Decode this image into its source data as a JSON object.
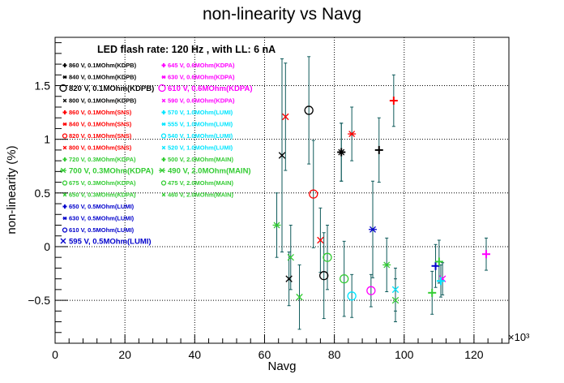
{
  "chart_data": {
    "type": "scatter",
    "title": "non-linearity vs Navg",
    "subtitle": "LED flash rate: 120 Hz , with LL: 6 nA",
    "xlabel": "Navg",
    "ylabel": "non-linearity (%)",
    "x_multiplier_label": "×10³",
    "x_multiplier": 1000,
    "xlim": [
      0,
      130
    ],
    "ylim": [
      -0.9,
      1.95
    ],
    "x_ticks": [
      {
        "value": 0,
        "label": "0"
      },
      {
        "value": 20,
        "label": "20"
      },
      {
        "value": 40,
        "label": "40"
      },
      {
        "value": 60,
        "label": "60"
      },
      {
        "value": 80,
        "label": "80"
      },
      {
        "value": 100,
        "label": "100"
      },
      {
        "value": 120,
        "label": "120"
      }
    ],
    "y_ticks": [
      {
        "value": -0.5,
        "label": "−0.5"
      },
      {
        "value": 0,
        "label": "0"
      },
      {
        "value": 0.5,
        "label": "0.5"
      },
      {
        "value": 1,
        "label": "1"
      },
      {
        "value": 1.5,
        "label": "1.5"
      }
    ],
    "grid": true,
    "error_bar_color": "#0d5a5a",
    "series": [
      {
        "name": "860 V, 0.1MOhm(KDPB)",
        "marker": "+",
        "color": "#000000",
        "points": [
          {
            "x": 82.0,
            "y": 0.88,
            "err": 0.27
          },
          {
            "x": 92.8,
            "y": 0.9,
            "err": 0.3
          }
        ]
      },
      {
        "name": "840 V, 0.1MOhm(KDPB)",
        "marker": "*",
        "color": "#000000",
        "points": [
          {
            "x": 82.0,
            "y": 0.88,
            "err": 0.27
          }
        ]
      },
      {
        "name": "820 V, 0.1MOhm(KDPB)",
        "marker": "o",
        "color": "#000000",
        "points": [
          {
            "x": 72.7,
            "y": 1.27,
            "err": 0.5
          },
          {
            "x": 77.0,
            "y": -0.27,
            "err": 0.4
          }
        ]
      },
      {
        "name": "800 V, 0.1MOhm(KDPB)",
        "marker": "x",
        "color": "#000000",
        "points": [
          {
            "x": 65.0,
            "y": 0.85,
            "err": 0.9
          },
          {
            "x": 67.0,
            "y": -0.3,
            "err": 0.25
          }
        ]
      },
      {
        "name": "860 V, 0.1MOhm(SNS)",
        "marker": "+",
        "color": "#ff0000",
        "points": [
          {
            "x": 97.0,
            "y": 1.36,
            "err": 0.24
          }
        ]
      },
      {
        "name": "840 V, 0.1MOhm(SNS)",
        "marker": "*",
        "color": "#ff0000",
        "points": [
          {
            "x": 85.0,
            "y": 1.05,
            "err": 0.25
          }
        ]
      },
      {
        "name": "820 V, 0.1MOhm(SNS)",
        "marker": "o",
        "color": "#ff0000",
        "points": [
          {
            "x": 74.0,
            "y": 0.49,
            "err": 0.5
          }
        ]
      },
      {
        "name": "800 V, 0.1MOhm(SNS)",
        "marker": "x",
        "color": "#ff0000",
        "points": [
          {
            "x": 66.0,
            "y": 1.21,
            "err": 0.5
          },
          {
            "x": 76.0,
            "y": 0.06,
            "err": 0.3
          }
        ]
      },
      {
        "name": "720 V, 0.3MOhm(KDPA)",
        "marker": "+",
        "color": "#33cc33",
        "points": [
          {
            "x": 108.0,
            "y": -0.43,
            "err": 0.2
          }
        ]
      },
      {
        "name": "700 V, 0.3MOhm(KDPA)",
        "marker": "*",
        "color": "#33cc33",
        "points": [
          {
            "x": 95.0,
            "y": -0.17,
            "err": 0.25
          }
        ]
      },
      {
        "name": "675 V, 0.3MOhm(KDPA)",
        "marker": "o",
        "color": "#33cc33",
        "points": [
          {
            "x": 78.0,
            "y": -0.1,
            "err": 0.3
          },
          {
            "x": 82.8,
            "y": -0.3,
            "err": 0.35
          }
        ]
      },
      {
        "name": "650 V, 0.3MOhm(KDPA)",
        "marker": "x",
        "color": "#33cc33",
        "points": [
          {
            "x": 70.0,
            "y": -0.47,
            "err": 0.3
          }
        ]
      },
      {
        "name": "650 V, 0.5MOhm(LUMI)",
        "marker": "+",
        "color": "#0000cc",
        "points": [
          {
            "x": 109.0,
            "y": -0.18,
            "err": 0.2
          }
        ]
      },
      {
        "name": "630 V, 0.5MOhm(LUMI)",
        "marker": "*",
        "color": "#0000cc",
        "points": [
          {
            "x": 91.0,
            "y": 0.16,
            "err": 0.45
          }
        ]
      },
      {
        "name": "610 V, 0.5MOhm(LUMI)",
        "marker": "o",
        "color": "#0000cc",
        "points": []
      },
      {
        "name": "595 V, 0.5MOhm(LUMI)",
        "marker": "x",
        "color": "#0000cc",
        "points": []
      },
      {
        "name": "645 V, 0.6MOhm(KDPA)",
        "marker": "+",
        "color": "#ff00ff",
        "points": [
          {
            "x": 123.5,
            "y": -0.07,
            "err": 0.15
          }
        ]
      },
      {
        "name": "630 V, 0.6MOhm(KDPA)",
        "marker": "*",
        "color": "#ff00ff",
        "points": []
      },
      {
        "name": "610 V, 0.6MOhm(KDPA)",
        "marker": "o",
        "color": "#ff00ff",
        "points": [
          {
            "x": 90.5,
            "y": -0.41,
            "err": 0.15
          }
        ]
      },
      {
        "name": "590 V, 0.6MOhm(KDPA)",
        "marker": "x",
        "color": "#ff00ff",
        "points": [
          {
            "x": 111.0,
            "y": -0.3,
            "err": 0.15
          }
        ]
      },
      {
        "name": "570 V, 1.0MOhm(LUMI)",
        "marker": "+",
        "color": "#00e5ff",
        "points": [
          {
            "x": 110.5,
            "y": -0.32,
            "err": 0.15
          }
        ]
      },
      {
        "name": "555 V, 1.0MOhm(LUMI)",
        "marker": "*",
        "color": "#00e5ff",
        "points": []
      },
      {
        "name": "540 V, 1.0MOhm(LUMI)",
        "marker": "o",
        "color": "#00e5ff",
        "points": [
          {
            "x": 85.0,
            "y": -0.46,
            "err": 0.2
          }
        ]
      },
      {
        "name": "520 V, 1.0MOhm(LUMI)",
        "marker": "x",
        "color": "#00e5ff",
        "points": [
          {
            "x": 97.5,
            "y": -0.4,
            "err": 0.2
          }
        ]
      },
      {
        "name": "500 V, 2.0MOhm(MAIN)",
        "marker": "+",
        "color": "#33cc33",
        "points": [
          {
            "x": 110.0,
            "y": -0.14,
            "err": 0.2
          }
        ]
      },
      {
        "name": "490 V, 2.0MOhm(MAIN)",
        "marker": "*",
        "color": "#33cc33",
        "points": [
          {
            "x": 63.5,
            "y": 0.2,
            "err": 0.3
          }
        ]
      },
      {
        "name": "475 V, 2.0MOhm(MAIN)",
        "marker": "o",
        "color": "#33cc33",
        "points": []
      },
      {
        "name": "460 V, 2.0MOhm(MAIN)",
        "marker": "x",
        "color": "#33cc33",
        "points": [
          {
            "x": 67.5,
            "y": -0.1,
            "err": 0.3
          },
          {
            "x": 97.5,
            "y": -0.5,
            "err": 0.2
          }
        ]
      }
    ],
    "legend_left": [
      {
        "marker": "+",
        "text": "860 V, 0.1MOhm(KDPB)",
        "color": "#000000",
        "size": "small"
      },
      {
        "marker": "*",
        "text": "840 V, 0.1MOhm(KDPB)",
        "color": "#000000",
        "size": "small"
      },
      {
        "marker": "O",
        "text": "820 V, 0.1MOhm(KDPB)",
        "color": "#000000",
        "size": "large"
      },
      {
        "marker": "X",
        "text": "800 V, 0.1MOhm(KDPB)",
        "color": "#000000",
        "size": "small"
      },
      {
        "marker": "+",
        "text": "860 V, 0.1MOhm(SNS)",
        "color": "#ff0000",
        "size": "small"
      },
      {
        "marker": "*",
        "text": "840 V, 0.1MOhm(SNS)",
        "color": "#ff0000",
        "size": "small"
      },
      {
        "marker": "O",
        "text": "820 V, 0.1MOhm(SNS)",
        "color": "#ff0000",
        "size": "small"
      },
      {
        "marker": "X",
        "text": "800 V, 0.1MOhm(SNS)",
        "color": "#ff0000",
        "size": "small"
      },
      {
        "marker": "+",
        "text": "720 V, 0.3MOhm(KDPA)",
        "color": "#33cc33",
        "size": "small"
      },
      {
        "marker": "*",
        "text": "700 V, 0.3MOhm(KDPA)",
        "color": "#33cc33",
        "size": "large"
      },
      {
        "marker": "O",
        "text": "675 V, 0.3MOhm(KDPA)",
        "color": "#33cc33",
        "size": "small"
      },
      {
        "marker": "X",
        "text": "650 V, 0.3MOhm(KDPA)",
        "color": "#33cc33",
        "size": "small"
      },
      {
        "marker": "+",
        "text": "650 V, 0.5MOhm(LUMI)",
        "color": "#0000cc",
        "size": "small"
      },
      {
        "marker": "*",
        "text": "630 V, 0.5MOhm(LUMI)",
        "color": "#0000cc",
        "size": "small"
      },
      {
        "marker": "O",
        "text": "610 V, 0.5MOhm(LUMI)",
        "color": "#0000cc",
        "size": "small"
      },
      {
        "marker": "X",
        "text": "595 V, 0.5MOhm(LUMI)",
        "color": "#0000cc",
        "size": "large"
      }
    ],
    "legend_right": [
      {
        "marker": "+",
        "text": "645 V, 0.6MOhm(KDPA)",
        "color": "#ff00ff",
        "size": "small"
      },
      {
        "marker": "*",
        "text": "630 V, 0.6MOhm(KDPA)",
        "color": "#ff00ff",
        "size": "small"
      },
      {
        "marker": "O",
        "text": "610 V, 0.6MOhm(KDPA)",
        "color": "#ff00ff",
        "size": "large"
      },
      {
        "marker": "X",
        "text": "590 V, 0.6MOhm(KDPA)",
        "color": "#ff00ff",
        "size": "small"
      },
      {
        "marker": "+",
        "text": "570 V, 1.0MOhm(LUMI)",
        "color": "#00e5ff",
        "size": "small"
      },
      {
        "marker": "*",
        "text": "555 V, 1.0MOhm(LUMI)",
        "color": "#00e5ff",
        "size": "small"
      },
      {
        "marker": "O",
        "text": "540 V, 1.0MOhm(LUMI)",
        "color": "#00e5ff",
        "size": "small"
      },
      {
        "marker": "X",
        "text": "520 V, 1.0MOhm(LUMI)",
        "color": "#00e5ff",
        "size": "small"
      },
      {
        "marker": "+",
        "text": "500 V, 2.0MOhm(MAIN)",
        "color": "#33cc33",
        "size": "small"
      },
      {
        "marker": "*",
        "text": "490 V, 2.0MOhm(MAIN)",
        "color": "#33cc33",
        "size": "large"
      },
      {
        "marker": "O",
        "text": "475 V, 2.0MOhm(MAIN)",
        "color": "#33cc33",
        "size": "small"
      },
      {
        "marker": "X",
        "text": "460 V, 2.0MOhm(MAIN)",
        "color": "#33cc33",
        "size": "small"
      }
    ]
  }
}
